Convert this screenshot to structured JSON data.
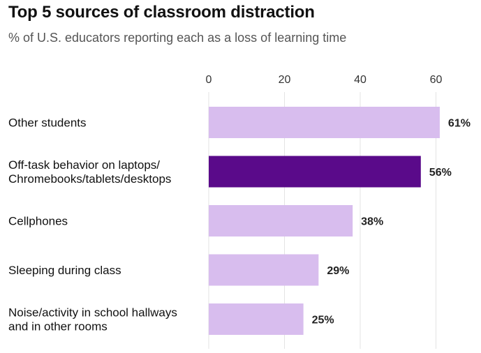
{
  "chart_data": {
    "type": "bar",
    "orientation": "horizontal",
    "title": "Top 5 sources of classroom distraction",
    "subtitle": "% of U.S. educators reporting each as a loss of learning time",
    "categories": [
      [
        "Other students"
      ],
      [
        "Off-task behavior on laptops/",
        "Chromebooks/tablets/desktops"
      ],
      [
        "Cellphones"
      ],
      [
        "Sleeping during class"
      ],
      [
        "Noise/activity in school hallways",
        "and in other rooms"
      ]
    ],
    "values": [
      61,
      56,
      38,
      29,
      25
    ],
    "value_labels": [
      "61%",
      "56%",
      "38%",
      "29%",
      "25%"
    ],
    "x_ticks": [
      0,
      20,
      40,
      60
    ],
    "xlim": [
      0,
      65
    ],
    "grid": true,
    "colors": {
      "default": "#d8bdee",
      "highlight": "#5a0a8a",
      "highlight_index": 1
    }
  }
}
